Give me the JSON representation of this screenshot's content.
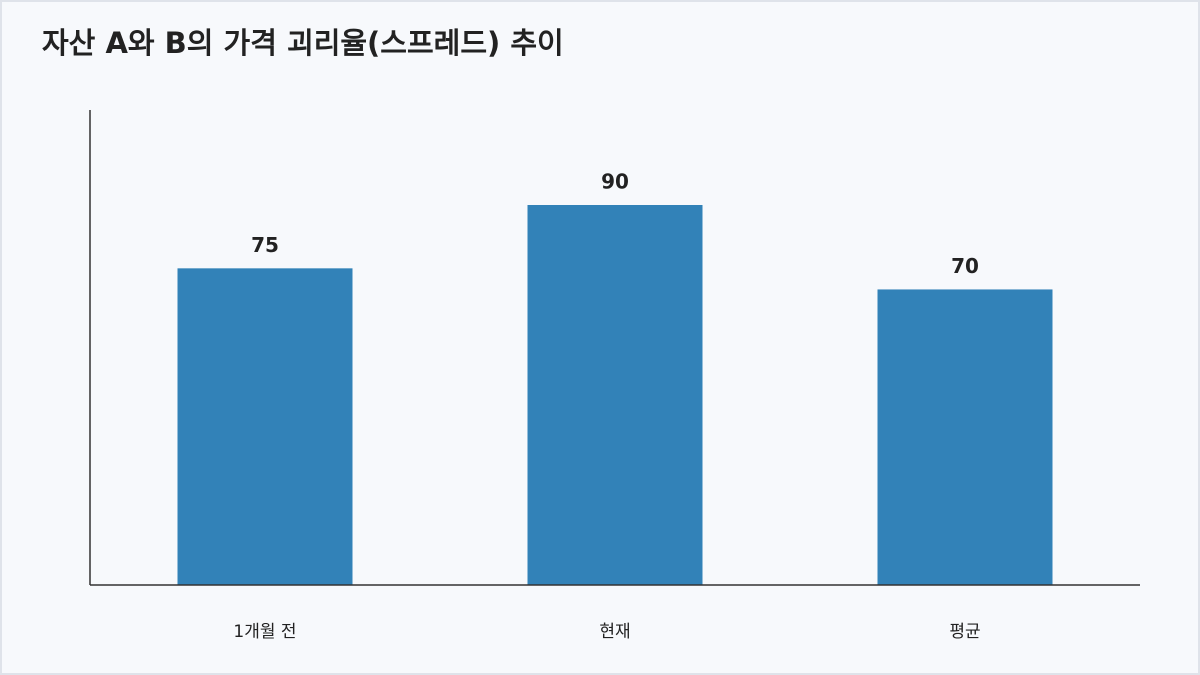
{
  "chart_data": {
    "type": "bar",
    "title": "자산 A와 B의 가격 괴리율(스프레드) 추이",
    "categories": [
      "1개월 전",
      "현재",
      "평균"
    ],
    "values": [
      75,
      90,
      70
    ],
    "color": "#3282b8",
    "ylim": [
      0,
      112.5
    ],
    "grid": false
  }
}
